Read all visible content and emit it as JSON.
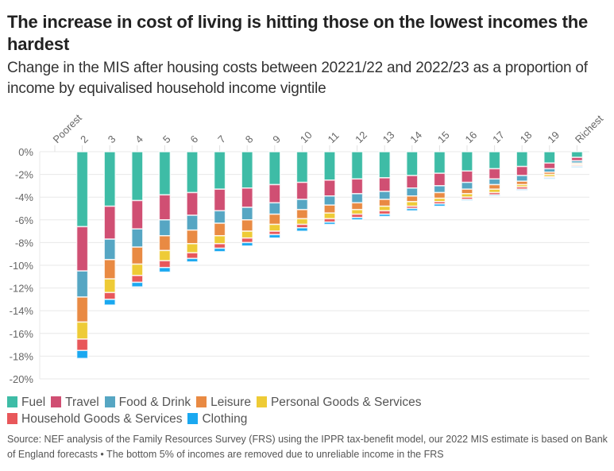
{
  "title": "The increase in cost of living is hitting those on the lowest incomes the hardest",
  "subtitle": "Change in the MIS after housing costs between 20221/22 and 2022/23 as a proportion of income by equivalised household income vigntile",
  "legend": [
    {
      "label": "Fuel",
      "color": "#3ebca6"
    },
    {
      "label": "Travel",
      "color": "#d04f73"
    },
    {
      "label": "Food & Drink",
      "color": "#56a6c3"
    },
    {
      "label": "Leisure",
      "color": "#e98a43"
    },
    {
      "label": "Personal Goods & Services",
      "color": "#eecb36"
    },
    {
      "label": "Household Goods & Services",
      "color": "#e8575a"
    },
    {
      "label": "Clothing",
      "color": "#1aa8f0"
    }
  ],
  "source": "Source: NEF analysis of the Family Resources Survey (FRS) using the IPPR tax-benefit model, our 2022 MIS estimate is based on Bank of England forecasts • The bottom 5% of incomes are removed due to unreliable income in the FRS",
  "chart_data": {
    "type": "bar",
    "stacked": true,
    "title": "The increase in cost of living is hitting those on the lowest incomes the hardest",
    "xlabel": "",
    "ylabel": "",
    "ylim": [
      -20,
      0
    ],
    "yticks": [
      0,
      -2,
      -4,
      -6,
      -8,
      -10,
      -12,
      -14,
      -16,
      -18,
      -20
    ],
    "ytick_labels": [
      "0%",
      "-2%",
      "-4%",
      "-6%",
      "-8%",
      "-10%",
      "-12%",
      "-14%",
      "-16%",
      "-18%",
      "-20%"
    ],
    "grid": true,
    "legend_position": "bottom",
    "categories": [
      "Poorest",
      "2",
      "3",
      "4",
      "5",
      "6",
      "7",
      "8",
      "9",
      "10",
      "11",
      "12",
      "13",
      "14",
      "15",
      "16",
      "17",
      "18",
      "19",
      "Richest"
    ],
    "series": [
      {
        "name": "Fuel",
        "values": [
          null,
          -6.6,
          -4.8,
          -4.3,
          -3.8,
          -3.6,
          -3.3,
          -3.2,
          -2.9,
          -2.7,
          -2.5,
          -2.4,
          -2.3,
          -2.1,
          -1.9,
          -1.7,
          -1.5,
          -1.3,
          -1.0,
          -0.5
        ]
      },
      {
        "name": "Travel",
        "values": [
          null,
          -3.9,
          -2.9,
          -2.5,
          -2.2,
          -2.0,
          -1.9,
          -1.7,
          -1.6,
          -1.5,
          -1.4,
          -1.3,
          -1.2,
          -1.1,
          -1.1,
          -1.0,
          -0.9,
          -0.8,
          -0.5,
          -0.3
        ]
      },
      {
        "name": "Food & Drink",
        "values": [
          null,
          -2.3,
          -1.8,
          -1.6,
          -1.4,
          -1.3,
          -1.1,
          -1.1,
          -1.0,
          -0.9,
          -0.8,
          -0.8,
          -0.7,
          -0.7,
          -0.6,
          -0.6,
          -0.5,
          -0.5,
          -0.3,
          -0.2
        ]
      },
      {
        "name": "Leisure",
        "values": [
          null,
          -2.2,
          -1.7,
          -1.5,
          -1.3,
          -1.2,
          -1.1,
          -1.0,
          -0.9,
          -0.8,
          -0.7,
          -0.6,
          -0.6,
          -0.5,
          -0.5,
          -0.4,
          -0.4,
          -0.3,
          -0.2,
          -0.1
        ]
      },
      {
        "name": "Personal Goods & Services",
        "values": [
          null,
          -1.5,
          -1.2,
          -1.0,
          -0.9,
          -0.8,
          -0.7,
          -0.6,
          -0.6,
          -0.5,
          -0.5,
          -0.4,
          -0.4,
          -0.4,
          -0.3,
          -0.3,
          -0.3,
          -0.2,
          -0.2,
          -0.1
        ]
      },
      {
        "name": "Household Goods & Services",
        "values": [
          null,
          -1.0,
          -0.6,
          -0.6,
          -0.6,
          -0.5,
          -0.4,
          -0.4,
          -0.3,
          -0.3,
          -0.3,
          -0.3,
          -0.3,
          -0.2,
          -0.2,
          -0.2,
          -0.2,
          -0.2,
          -0.1,
          -0.1
        ]
      },
      {
        "name": "Clothing",
        "values": [
          null,
          -0.7,
          -0.5,
          -0.4,
          -0.4,
          -0.3,
          -0.3,
          -0.3,
          -0.3,
          -0.3,
          -0.2,
          -0.2,
          -0.2,
          -0.2,
          -0.2,
          -0.1,
          -0.1,
          -0.1,
          -0.1,
          -0.1
        ]
      }
    ]
  }
}
